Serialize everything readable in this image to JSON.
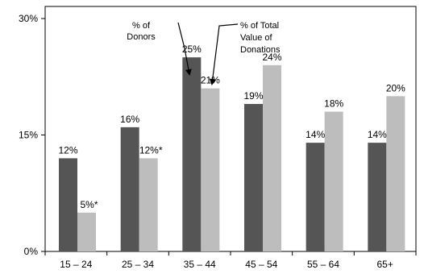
{
  "chart_data": {
    "type": "bar",
    "categories": [
      "15 – 24",
      "25 – 34",
      "35 – 44",
      "45 – 54",
      "55 – 64",
      "65+"
    ],
    "series": [
      {
        "name": "% of Donors",
        "color": "#555555",
        "values": [
          12,
          16,
          25,
          19,
          14,
          14
        ],
        "labels": [
          "12%",
          "16%",
          "25%",
          "19%",
          "14%",
          "14%"
        ]
      },
      {
        "name": "% of Total Value of Donations",
        "color": "#bdbdbd",
        "values": [
          5,
          12,
          21,
          24,
          18,
          20
        ],
        "labels": [
          "5%*",
          "12%*",
          "21%",
          "24%",
          "18%",
          "20%"
        ]
      }
    ],
    "yticks": [
      {
        "value": 0,
        "label": "0%"
      },
      {
        "value": 15,
        "label": "15%"
      },
      {
        "value": 30,
        "label": "30%"
      }
    ],
    "ylim": [
      0,
      30
    ],
    "grid": false,
    "annotations": [
      {
        "target_series": 0,
        "target_category": 2,
        "lines": [
          "% of",
          "Donors"
        ]
      },
      {
        "target_series": 1,
        "target_category": 2,
        "lines": [
          "% of Total",
          "Value of",
          "Donations"
        ]
      }
    ]
  }
}
